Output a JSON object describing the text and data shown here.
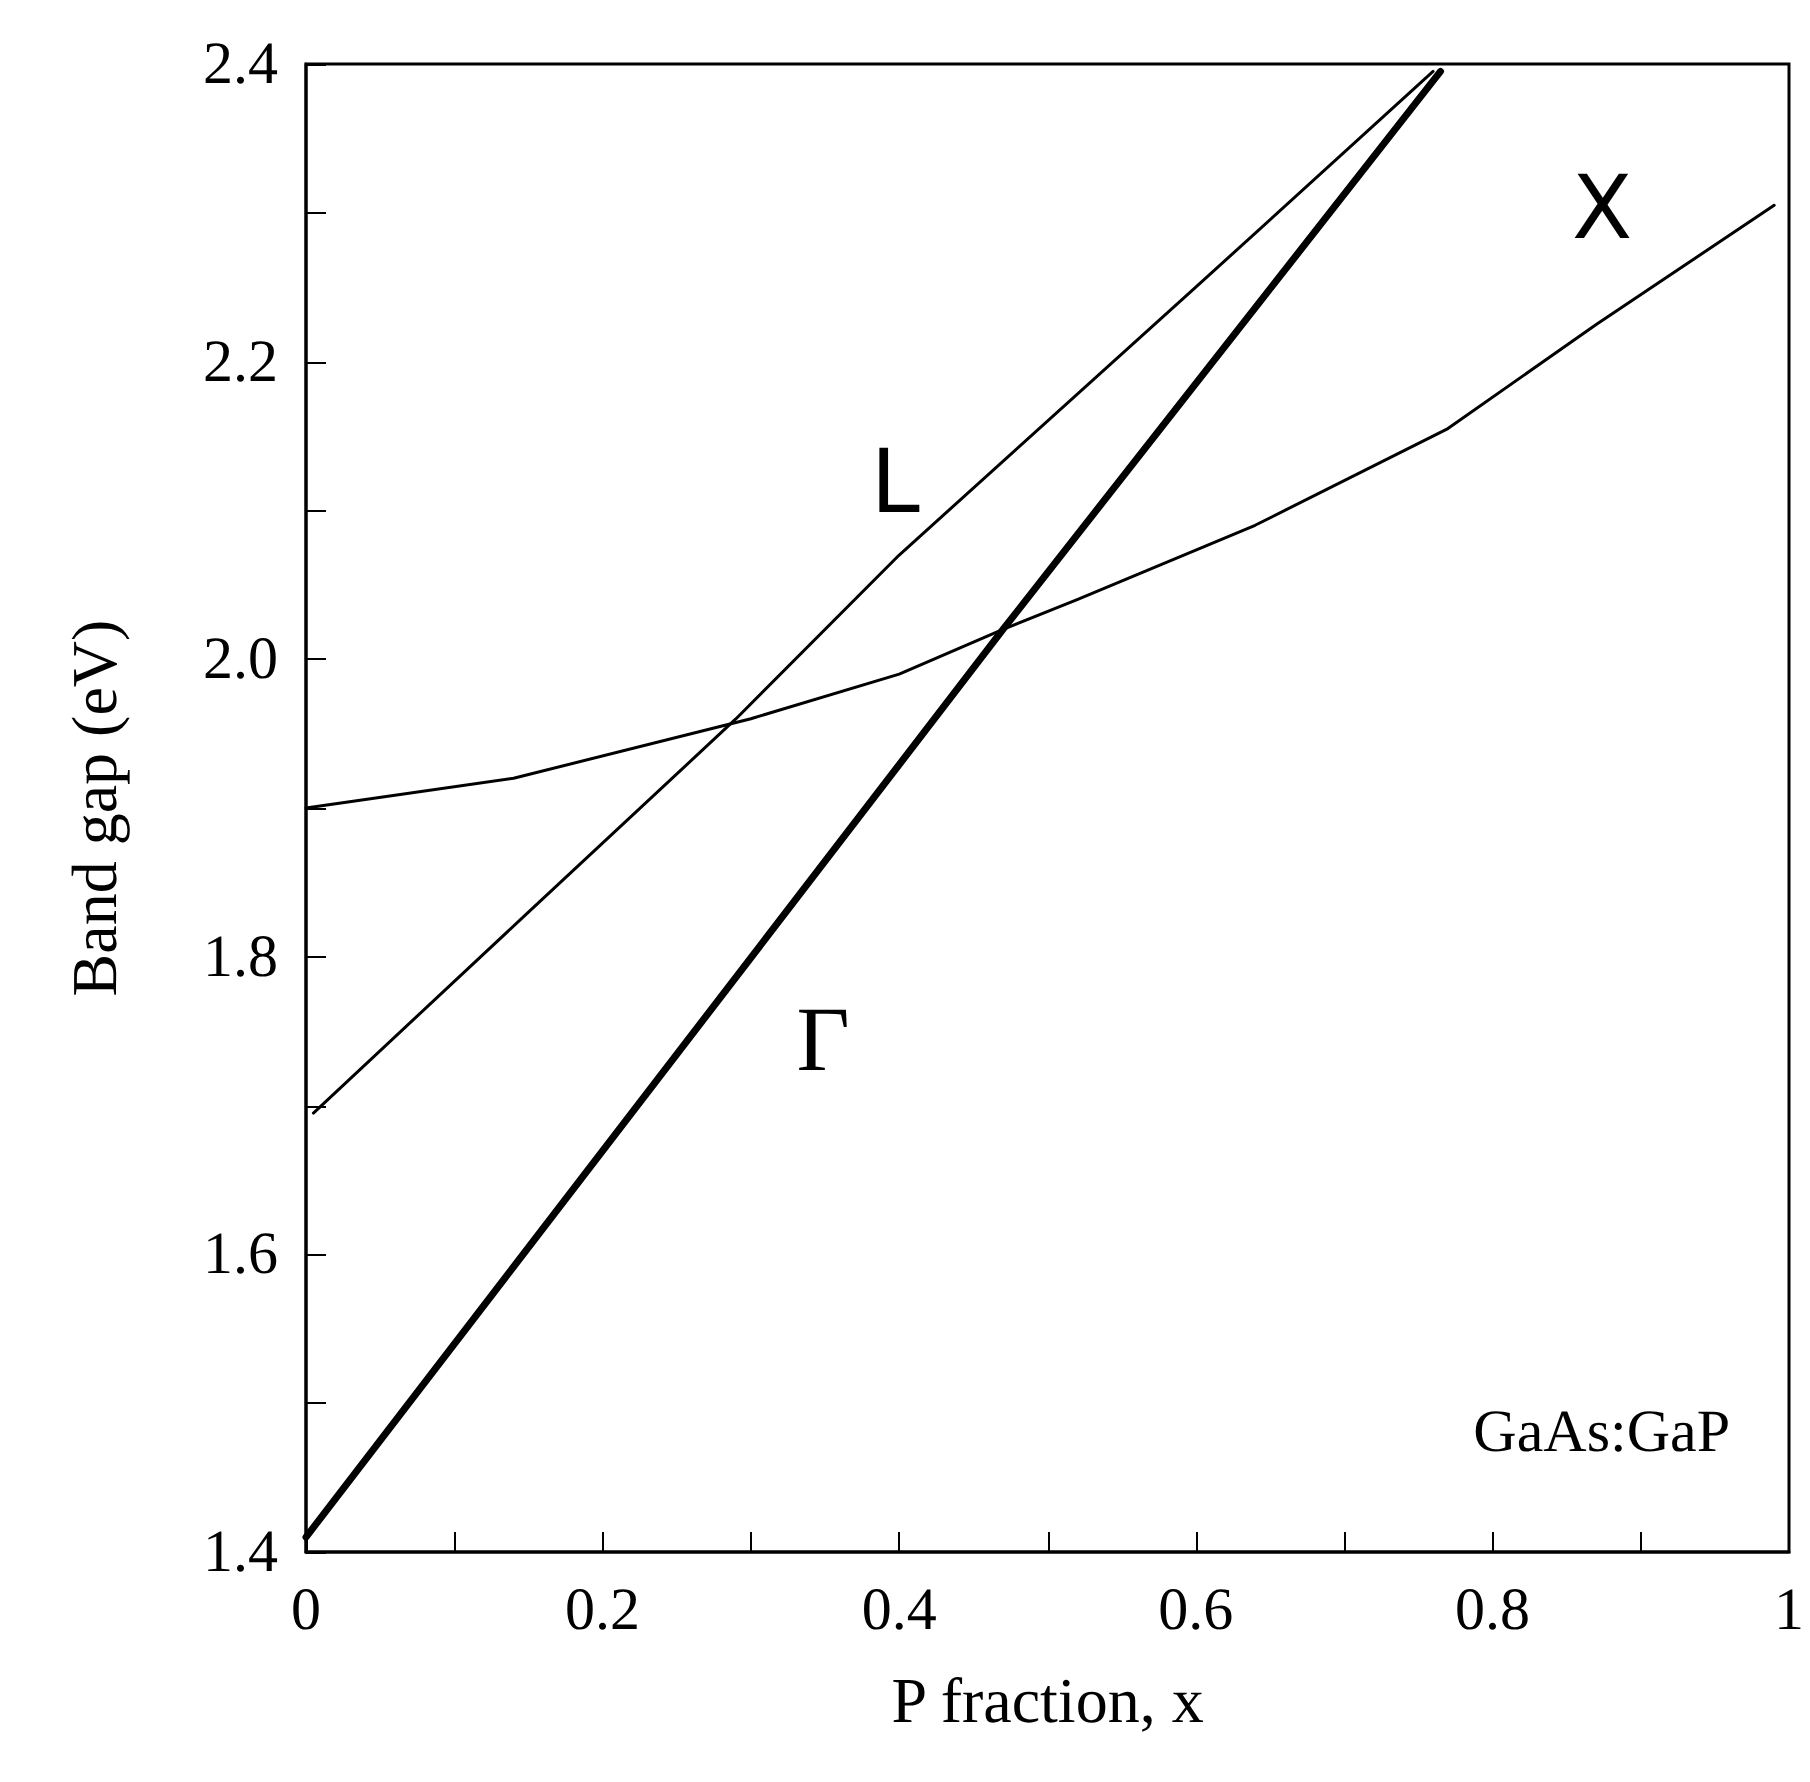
{
  "chart_data": {
    "type": "line",
    "xlabel": "P fraction, x",
    "ylabel": "Band gap (eV)",
    "xlim": [
      0,
      1
    ],
    "ylim": [
      1.4,
      2.4
    ],
    "xticks": [
      0,
      {
        "value": 0.1,
        "label": null
      },
      0.2,
      {
        "value": 0.3,
        "label": null
      },
      0.4,
      {
        "value": 0.5,
        "label": null
      },
      0.6,
      {
        "value": 0.7,
        "label": null
      },
      0.8,
      {
        "value": 0.9,
        "label": null
      },
      1
    ],
    "yticks": [
      1.4,
      {
        "value": 1.5,
        "label": null
      },
      1.6,
      {
        "value": 1.7,
        "label": null
      },
      1.8,
      {
        "value": 1.9,
        "label": null
      },
      {
        "value": 2,
        "label": "2.0"
      },
      {
        "value": 2.1,
        "label": null
      },
      2.2,
      {
        "value": 2.3,
        "label": null
      },
      2.4
    ],
    "grid": false,
    "legend": false,
    "marker": "none",
    "line_style": "solid",
    "annotations": [
      "GaAs:GaP"
    ],
    "series": [
      {
        "name": "Γ",
        "color": "#000000",
        "x": [
          0,
          0.47,
          0.765
        ],
        "values": [
          1.41,
          2.02,
          2.395
        ]
      },
      {
        "name": "L",
        "color": "#000000",
        "x": [
          0.005,
          0.15,
          0.29,
          0.4,
          0.6,
          0.76
        ],
        "values": [
          1.695,
          1.83,
          1.96,
          2.07,
          2.25,
          2.395
        ]
      },
      {
        "name": "X",
        "color": "#000000",
        "x": [
          0,
          0.14,
          0.3,
          0.4,
          0.47,
          0.52,
          0.64,
          0.77,
          0.87,
          0.99
        ],
        "values": [
          1.9,
          1.92,
          1.96,
          1.99,
          2.02,
          2.04,
          2.09,
          2.155,
          2.225,
          2.305
        ]
      }
    ]
  }
}
